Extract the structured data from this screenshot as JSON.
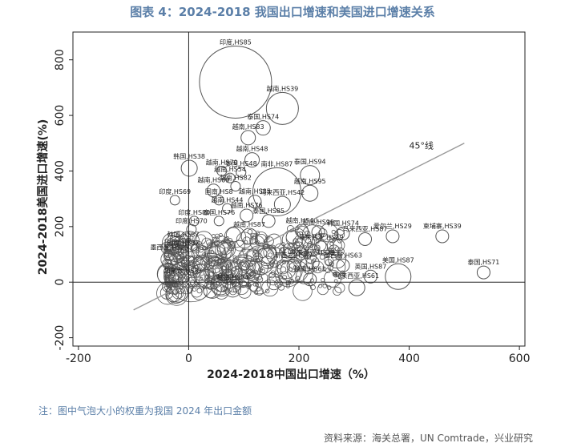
{
  "header": {
    "title": "图表 4：2024-2018 我国出口增速和美国进口增速关系"
  },
  "footer": {
    "note": "注：图中气泡大小的权重为我国 2024 年出口金额",
    "source": "资料来源：海关总署，UN Comtrade，兴业研究"
  },
  "chart_data": {
    "type": "scatter",
    "title": "",
    "xlabel": "2024-2018中国出口增速（%）",
    "ylabel": "2024-2018美国进口增速(%)",
    "xlim": [
      -210,
      610
    ],
    "ylim": [
      -230,
      900
    ],
    "xticks": [
      -200,
      0,
      200,
      400,
      600
    ],
    "yticks": [
      -200,
      0,
      200,
      400,
      600,
      800
    ],
    "tick_labels_x": [
      "-200",
      "0",
      "200",
      "400",
      "600"
    ],
    "tick_labels_y": [
      "-200",
      "0",
      "200",
      "400",
      "600",
      "800"
    ],
    "grid": false,
    "reference_line": {
      "label": "45°线",
      "x": [
        -100,
        500
      ],
      "y": [
        -100,
        500
      ],
      "label_at": [
        400,
        480
      ]
    },
    "zero_lines": true,
    "colors": {
      "bubble": "#555555",
      "ref_line": "#999999"
    },
    "labeled_points": [
      {
        "label": "印度,HS85",
        "x": 85,
        "y": 720,
        "size": 45
      },
      {
        "label": "越南,HS39",
        "x": 170,
        "y": 625,
        "size": 20
      },
      {
        "label": "泰国,HS74",
        "x": 135,
        "y": 555,
        "size": 9
      },
      {
        "label": "越南,HS83",
        "x": 108,
        "y": 520,
        "size": 9
      },
      {
        "label": "越南,HS48",
        "x": 115,
        "y": 440,
        "size": 9
      },
      {
        "label": "韩国,HS38",
        "x": 1,
        "y": 410,
        "size": 10
      },
      {
        "label": "越南,HS70",
        "x": 60,
        "y": 400,
        "size": 6
      },
      {
        "label": "泰国,HS48",
        "x": 95,
        "y": 395,
        "size": 6
      },
      {
        "label": "泰国,HS94",
        "x": 220,
        "y": 385,
        "size": 12
      },
      {
        "label": "越南,HS54",
        "x": 75,
        "y": 375,
        "size": 6
      },
      {
        "label": "越南,HS82",
        "x": 85,
        "y": 345,
        "size": 6
      },
      {
        "label": "越南,HS69",
        "x": 45,
        "y": 330,
        "size": 8
      },
      {
        "label": "南非,HS87",
        "x": 160,
        "y": 325,
        "size": 30
      },
      {
        "label": "越南,HS95",
        "x": 220,
        "y": 320,
        "size": 10
      },
      {
        "label": "印度,HS69",
        "x": -25,
        "y": 295,
        "size": 6
      },
      {
        "label": "国南,HS8",
        "x": 55,
        "y": 295,
        "size": 6
      },
      {
        "label": "越南,HS85",
        "x": 120,
        "y": 290,
        "size": 8
      },
      {
        "label": "马来西亚,HS42",
        "x": 170,
        "y": 280,
        "size": 10
      },
      {
        "label": "越南,HS44",
        "x": 70,
        "y": 265,
        "size": 6
      },
      {
        "label": "越南,HS76",
        "x": 105,
        "y": 240,
        "size": 8
      },
      {
        "label": "泰国,HS85",
        "x": 145,
        "y": 220,
        "size": 8
      },
      {
        "label": "印度,HS80",
        "x": 10,
        "y": 220,
        "size": 6
      },
      {
        "label": "泰国,HS76",
        "x": 55,
        "y": 220,
        "size": 6
      },
      {
        "label": "越南,HS40",
        "x": 205,
        "y": 185,
        "size": 8
      },
      {
        "label": "印度,HS70",
        "x": 5,
        "y": 190,
        "size": 6
      },
      {
        "label": "越南,HS99",
        "x": 235,
        "y": 180,
        "size": 8
      },
      {
        "label": "韩国,HS74",
        "x": 280,
        "y": 175,
        "size": 8
      },
      {
        "label": "马来西亚,HS87",
        "x": 320,
        "y": 155,
        "size": 8
      },
      {
        "label": "爱尔兰,HS29",
        "x": 370,
        "y": 165,
        "size": 8
      },
      {
        "label": "柬埔寨,HS39",
        "x": 460,
        "y": 165,
        "size": 8
      },
      {
        "label": "越南,HS87",
        "x": 110,
        "y": 165,
        "size": 10
      },
      {
        "label": "马来西亚,HS29",
        "x": 240,
        "y": 125,
        "size": 8
      },
      {
        "label": "墨西哥,HS29",
        "x": -35,
        "y": 95,
        "size": 6
      },
      {
        "label": "韩国,HS87",
        "x": -10,
        "y": 140,
        "size": 6
      },
      {
        "label": "马来西亚,HS29",
        "x": 225,
        "y": 70,
        "size": 8
      },
      {
        "label": "墨西哥,HS63",
        "x": 280,
        "y": 60,
        "size": 8
      },
      {
        "label": "新西兰,HS87",
        "x": 190,
        "y": 60,
        "size": 8
      },
      {
        "label": "印度,HS87",
        "x": -10,
        "y": 110,
        "size": 6
      },
      {
        "label": "英国,HS87",
        "x": 330,
        "y": 20,
        "size": 8
      },
      {
        "label": "美国,HS87",
        "x": 380,
        "y": 20,
        "size": 16
      },
      {
        "label": "泰国,HS71",
        "x": 535,
        "y": 35,
        "size": 8
      },
      {
        "label": "越南,HS61",
        "x": 220,
        "y": 10,
        "size": 8
      },
      {
        "label": "马来西亚,HS61",
        "x": 305,
        "y": -20,
        "size": 10
      },
      {
        "label": "加拿大,HS87",
        "x": -10,
        "y": 10,
        "size": 6
      },
      {
        "label": "越南,HS84",
        "x": 80,
        "y": -25,
        "size": 10
      }
    ]
  }
}
